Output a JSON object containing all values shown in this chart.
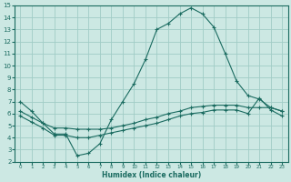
{
  "xlabel": "Humidex (Indice chaleur)",
  "ylabel": "",
  "bg_color": "#cce8e3",
  "grid_color": "#a0ccc6",
  "line_color": "#1a6b60",
  "xlim": [
    -0.5,
    23.5
  ],
  "ylim": [
    2,
    15
  ],
  "xticks": [
    0,
    1,
    2,
    3,
    4,
    5,
    6,
    7,
    8,
    9,
    10,
    11,
    12,
    13,
    14,
    15,
    16,
    17,
    18,
    19,
    20,
    21,
    22,
    23
  ],
  "yticks": [
    2,
    3,
    4,
    5,
    6,
    7,
    8,
    9,
    10,
    11,
    12,
    13,
    14,
    15
  ],
  "series1_x": [
    0,
    1,
    2,
    3,
    4,
    5,
    6,
    7,
    8,
    9,
    10,
    11,
    12,
    13,
    14,
    15,
    16,
    17,
    18,
    19,
    20,
    21,
    22,
    23
  ],
  "series1_y": [
    7.0,
    6.2,
    5.2,
    4.3,
    4.3,
    2.5,
    2.7,
    3.5,
    5.5,
    7.0,
    8.5,
    10.5,
    13.0,
    13.5,
    14.3,
    14.8,
    14.3,
    13.2,
    11.0,
    8.7,
    7.5,
    7.2,
    6.5,
    6.2
  ],
  "series2_x": [
    0,
    1,
    2,
    3,
    4,
    5,
    6,
    7,
    8,
    9,
    10,
    11,
    12,
    13,
    14,
    15,
    16,
    17,
    18,
    19,
    20,
    21,
    22,
    23
  ],
  "series2_y": [
    6.2,
    5.7,
    5.2,
    4.8,
    4.8,
    4.7,
    4.7,
    4.7,
    4.8,
    5.0,
    5.2,
    5.5,
    5.7,
    6.0,
    6.2,
    6.5,
    6.6,
    6.7,
    6.7,
    6.7,
    6.5,
    6.5,
    6.5,
    6.2
  ],
  "series3_x": [
    0,
    1,
    2,
    3,
    4,
    5,
    6,
    7,
    8,
    9,
    10,
    11,
    12,
    13,
    14,
    15,
    16,
    17,
    18,
    19,
    20,
    21,
    22,
    23
  ],
  "series3_y": [
    5.8,
    5.3,
    4.8,
    4.2,
    4.2,
    4.0,
    4.0,
    4.2,
    4.4,
    4.6,
    4.8,
    5.0,
    5.2,
    5.5,
    5.8,
    6.0,
    6.1,
    6.3,
    6.3,
    6.3,
    6.0,
    7.3,
    6.3,
    5.8
  ]
}
